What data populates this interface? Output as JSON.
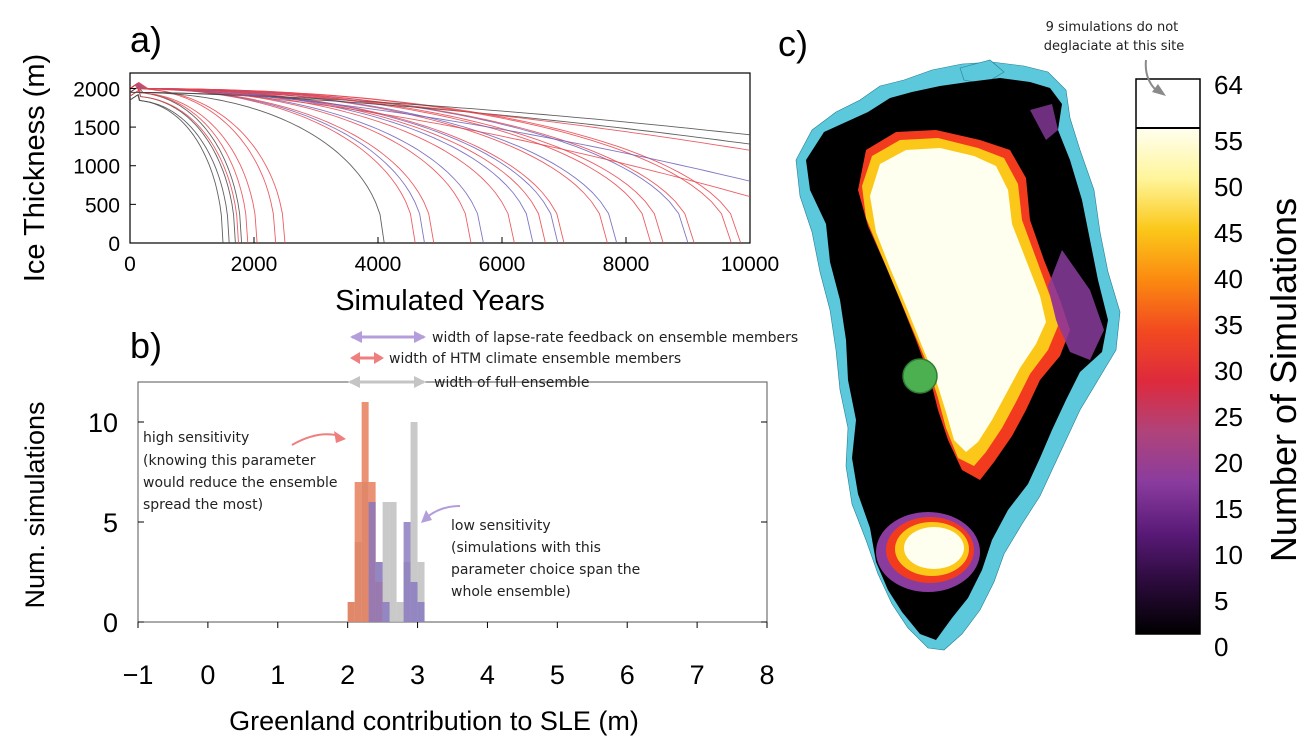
{
  "colors": {
    "red": "#e8424a",
    "blue_purple": "#6a5fb8",
    "gray_black": "#444444",
    "hist_orange": "#e67a55",
    "hist_purple": "#8878c0",
    "hist_gray": "#bdbdbd",
    "arrow_purple": "#b39ddb",
    "arrow_red": "#ef7f7f",
    "arrow_gray": "#c4c4c4",
    "ocean_ice": "#5bc8dc",
    "green_site": "#4caf50"
  },
  "panel_a": {
    "label": "a)",
    "chart_data": {
      "type": "line",
      "xlabel": "Simulated Years",
      "ylabel": "Ice Thickness (m)",
      "xlim": [
        0,
        10000
      ],
      "ylim": [
        0,
        2200
      ],
      "xticks": [
        "0",
        "2000",
        "4000",
        "6000",
        "8000",
        "10000"
      ],
      "yticks": [
        "0",
        "500",
        "1000",
        "1500",
        "2000"
      ],
      "series": [
        {
          "color": "gray_black",
          "end_year": 1500,
          "start": 1850
        },
        {
          "color": "gray_black",
          "end_year": 1600,
          "start": 1850
        },
        {
          "color": "gray_black",
          "end_year": 1700,
          "start": 1900
        },
        {
          "color": "gray_black",
          "end_year": 1800,
          "start": 1950
        },
        {
          "color": "red",
          "end_year": 1750,
          "start": 1900
        },
        {
          "color": "red",
          "end_year": 1900,
          "start": 1950
        },
        {
          "color": "red",
          "end_year": 2050,
          "start": 1950
        },
        {
          "color": "red",
          "end_year": 2350,
          "start": 2000
        },
        {
          "color": "red",
          "end_year": 2500,
          "start": 2000
        },
        {
          "color": "gray_black",
          "end_year": 4100,
          "start": 1950
        },
        {
          "color": "red",
          "end_year": 4600,
          "start": 2000
        },
        {
          "color": "blue_purple",
          "end_year": 4750,
          "start": 2000
        },
        {
          "color": "red",
          "end_year": 4900,
          "start": 2000
        },
        {
          "color": "red",
          "end_year": 5500,
          "start": 2000
        },
        {
          "color": "blue_purple",
          "end_year": 5700,
          "start": 2000
        },
        {
          "color": "red",
          "end_year": 6200,
          "start": 2000
        },
        {
          "color": "blue_purple",
          "end_year": 6500,
          "start": 2000
        },
        {
          "color": "red",
          "end_year": 6700,
          "start": 2000
        },
        {
          "color": "blue_purple",
          "end_year": 6900,
          "start": 2000
        },
        {
          "color": "red",
          "end_year": 7000,
          "start": 2000
        },
        {
          "color": "red",
          "end_year": 7700,
          "start": 2000
        },
        {
          "color": "blue_purple",
          "end_year": 7850,
          "start": 2000
        },
        {
          "color": "red",
          "end_year": 8400,
          "start": 2000
        },
        {
          "color": "red",
          "end_year": 8600,
          "start": 2000
        },
        {
          "color": "blue_purple",
          "end_year": 9000,
          "start": 2000
        },
        {
          "color": "red",
          "end_year": 9100,
          "start": 2000
        },
        {
          "color": "red",
          "end_year": 9700,
          "start": 2000
        },
        {
          "color": "red",
          "end_year": 9850,
          "start": 2000
        },
        {
          "color": "gray_black",
          "end_year": null,
          "start": 1950,
          "final": 1400
        },
        {
          "color": "gray_black",
          "end_year": null,
          "start": 1950,
          "final": 1280
        },
        {
          "color": "red",
          "end_year": null,
          "start": 2000,
          "final": 1200
        },
        {
          "color": "blue_purple",
          "end_year": null,
          "start": 2000,
          "final": 800
        },
        {
          "color": "red",
          "end_year": null,
          "start": 2000,
          "final": 600
        }
      ]
    }
  },
  "panel_b": {
    "label": "b)",
    "chart_data": {
      "type": "bar",
      "xlabel": "Greenland contribution to SLE (m)",
      "ylabel": "Num. simulations",
      "xlim": [
        -1,
        8
      ],
      "ylim": [
        0,
        12
      ],
      "xticks": [
        "−1",
        "0",
        "1",
        "2",
        "3",
        "4",
        "5",
        "6",
        "7",
        "8"
      ],
      "yticks": [
        "0",
        "5",
        "10"
      ],
      "bin_width": 0.1,
      "series": [
        {
          "color": "hist_gray",
          "x": [
            2.0,
            2.1,
            2.2,
            2.3,
            2.4,
            2.5,
            2.6,
            2.7,
            2.8,
            2.9,
            3.0
          ],
          "values": [
            1,
            4,
            7,
            6,
            3,
            6,
            6,
            1,
            3,
            10,
            3
          ]
        },
        {
          "color": "hist_orange",
          "x": [
            2.0,
            2.1,
            2.2,
            2.3,
            2.4
          ],
          "values": [
            1,
            7,
            11,
            7,
            2
          ]
        },
        {
          "color": "hist_purple",
          "x": [
            2.3,
            2.4,
            2.5,
            2.8,
            2.9,
            3.0
          ],
          "values": [
            6,
            3,
            1,
            5,
            2,
            1
          ]
        }
      ]
    },
    "legend": {
      "lapse_rate": "width of lapse-rate feedback on ensemble members",
      "htm": "width of HTM climate ensemble members",
      "full": "width of full ensemble"
    },
    "annotations": {
      "high": [
        "high sensitivity",
        "(knowing this parameter",
        "would reduce the ensemble",
        "spread the most)"
      ],
      "low": [
        "low sensitivity",
        "(simulations with this",
        "parameter choice span the",
        "whole ensemble)"
      ]
    }
  },
  "panel_c": {
    "label": "c)",
    "colorbar_label": "Number of Simulations",
    "colorbar_ticks": [
      "0",
      "5",
      "10",
      "15",
      "20",
      "25",
      "30",
      "35",
      "40",
      "45",
      "50",
      "55",
      "64"
    ],
    "colorbar_stops": [
      "#000000",
      "#2a0a3a",
      "#5a1a78",
      "#8a3c9e",
      "#b0437a",
      "#de2a3c",
      "#f24a20",
      "#fb8a10",
      "#fbc81a",
      "#fff59a",
      "#fffff0"
    ],
    "note": [
      "9 simulations do not",
      "deglaciate at this site"
    ]
  }
}
